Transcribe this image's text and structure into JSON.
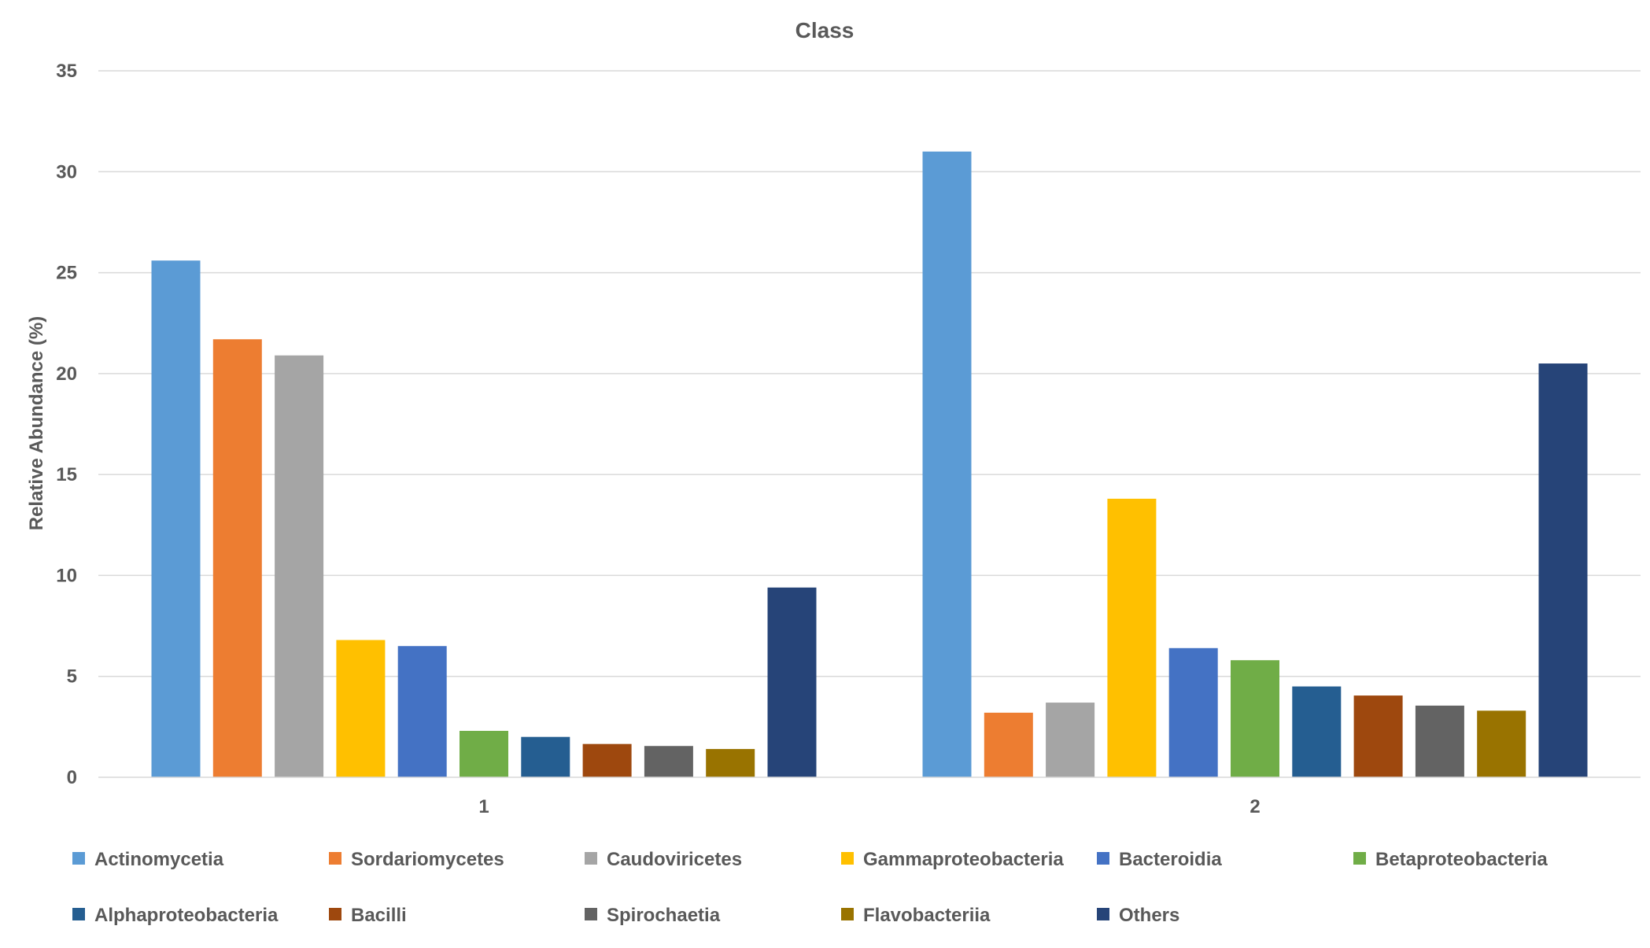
{
  "chart_data": {
    "type": "bar",
    "title": "Class",
    "xlabel": "",
    "ylabel": "Relative Abundance (%)",
    "ylim": [
      0,
      35
    ],
    "yticks": [
      "0",
      "5",
      "10",
      "15",
      "20",
      "25",
      "30",
      "35"
    ],
    "grid": true,
    "legend_position": "bottom",
    "categories": [
      "1",
      "2"
    ],
    "series": [
      {
        "name": "Actinomycetia",
        "color": "#5B9BD5",
        "values": [
          25.6,
          31.0
        ]
      },
      {
        "name": "Sordariomycetes",
        "color": "#ED7D31",
        "values": [
          21.7,
          3.2
        ]
      },
      {
        "name": "Caudoviricetes",
        "color": "#A5A5A5",
        "values": [
          20.9,
          3.7
        ]
      },
      {
        "name": "Gammaproteobacteria",
        "color": "#FFC000",
        "values": [
          6.8,
          13.8
        ]
      },
      {
        "name": "Bacteroidia",
        "color": "#4472C4",
        "values": [
          6.5,
          6.4
        ]
      },
      {
        "name": "Betaproteobacteria",
        "color": "#70AD47",
        "values": [
          2.3,
          5.8
        ]
      },
      {
        "name": "Alphaproteobacteria",
        "color": "#255E91",
        "values": [
          2.0,
          4.5
        ]
      },
      {
        "name": "Bacilli",
        "color": "#9E480E",
        "values": [
          1.65,
          4.05
        ]
      },
      {
        "name": "Spirochaetia",
        "color": "#636363",
        "values": [
          1.55,
          3.55
        ]
      },
      {
        "name": "Flavobacteriia",
        "color": "#997300",
        "values": [
          1.4,
          3.3
        ]
      },
      {
        "name": "Others",
        "color": "#264478",
        "values": [
          9.4,
          20.5
        ]
      }
    ]
  }
}
